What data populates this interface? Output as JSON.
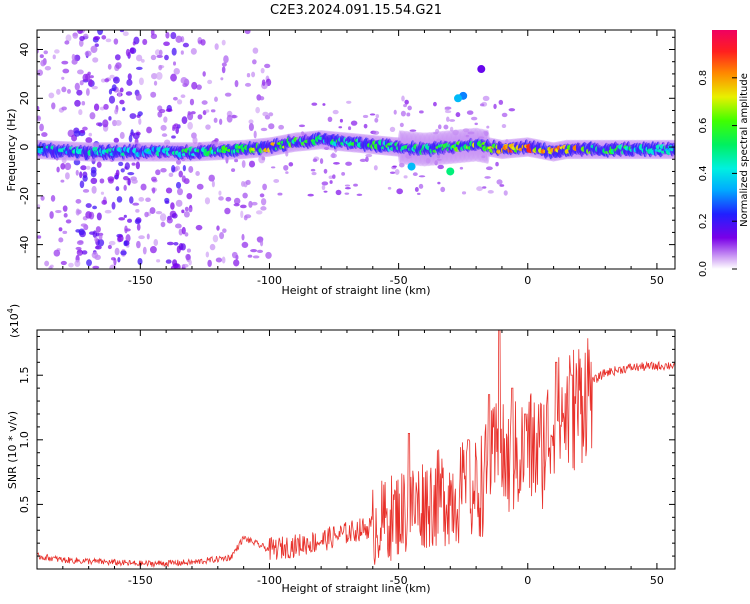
{
  "figure": {
    "title": "C2E3.2024.091.15.54.G21"
  },
  "chart_data": [
    {
      "type": "heatmap",
      "xlabel": "Height of straight line (km)",
      "ylabel": "Frequency (Hz)",
      "xlim": [
        -190,
        57
      ],
      "ylim": [
        -50,
        48
      ],
      "xticks": [
        -150,
        -100,
        -50,
        0,
        50
      ],
      "yticks": [
        -40,
        -20,
        0,
        20,
        40
      ],
      "grid": false,
      "colorbar": {
        "label": "Normalized spectral amplitude",
        "ticks": [
          "0.0",
          "0.2",
          "0.4",
          "0.6",
          "0.8"
        ],
        "range": [
          0,
          1
        ]
      },
      "ridge": [
        {
          "x": -190,
          "y": -1,
          "a": 0.45
        },
        {
          "x": -170,
          "y": -2,
          "a": 0.5
        },
        {
          "x": -150,
          "y": -2,
          "a": 0.45
        },
        {
          "x": -130,
          "y": -2,
          "a": 0.55
        },
        {
          "x": -110,
          "y": -1,
          "a": 0.62
        },
        {
          "x": -100,
          "y": 0,
          "a": 0.8
        },
        {
          "x": -90,
          "y": 2,
          "a": 0.6
        },
        {
          "x": -80,
          "y": 3,
          "a": 0.55
        },
        {
          "x": -70,
          "y": 2,
          "a": 0.55
        },
        {
          "x": -60,
          "y": 1,
          "a": 0.6
        },
        {
          "x": -50,
          "y": 0,
          "a": 0.55
        },
        {
          "x": -40,
          "y": -1,
          "a": 0.6
        },
        {
          "x": -30,
          "y": 0,
          "a": 0.65
        },
        {
          "x": -20,
          "y": 1,
          "a": 0.7
        },
        {
          "x": -10,
          "y": -1,
          "a": 0.85
        },
        {
          "x": 0,
          "y": 0,
          "a": 0.9
        },
        {
          "x": 5,
          "y": -1,
          "a": 0.88
        },
        {
          "x": 10,
          "y": -2,
          "a": 0.85
        },
        {
          "x": 15,
          "y": -1,
          "a": 0.9
        },
        {
          "x": 25,
          "y": -1,
          "a": 0.62
        },
        {
          "x": 40,
          "y": -1,
          "a": 0.55
        },
        {
          "x": 57,
          "y": -1,
          "a": 0.5
        }
      ],
      "features": [
        {
          "x": -25,
          "y": 21,
          "a": 0.3
        },
        {
          "x": -27,
          "y": 20,
          "a": 0.35
        },
        {
          "x": -18,
          "y": 32,
          "a": 0.15
        },
        {
          "x": -30,
          "y": -10,
          "a": 0.5
        },
        {
          "x": -45,
          "y": -8,
          "a": 0.35
        }
      ]
    },
    {
      "type": "line",
      "xlabel": "Height of straight line (km)",
      "ylabel": "SNR (10 * v/v)",
      "yscale_label": "(x10",
      "yscale_exponent": "4",
      "scale": 10000,
      "xlim": [
        -190,
        57
      ],
      "ylim": [
        0,
        18500
      ],
      "xticks": [
        -150,
        -100,
        -50,
        0,
        50
      ],
      "yticks": [
        "0.5",
        "1.0",
        "1.5"
      ],
      "ytick_values": [
        5000,
        10000,
        15000
      ],
      "grid": false,
      "series": [
        {
          "color": "#e8302a",
          "points": [
            {
              "x": -190,
              "y": 1000
            },
            {
              "x": -180,
              "y": 700
            },
            {
              "x": -170,
              "y": 600
            },
            {
              "x": -150,
              "y": 400
            },
            {
              "x": -130,
              "y": 500
            },
            {
              "x": -115,
              "y": 900
            },
            {
              "x": -110,
              "y": 2400
            },
            {
              "x": -100,
              "y": 1500
            },
            {
              "x": -90,
              "y": 1800
            },
            {
              "x": -80,
              "y": 2200
            },
            {
              "x": -70,
              "y": 2800
            },
            {
              "x": -60,
              "y": 3300
            },
            {
              "x": -50,
              "y": 4300
            },
            {
              "x": -40,
              "y": 5200
            },
            {
              "x": -30,
              "y": 5700
            },
            {
              "x": -20,
              "y": 6000
            },
            {
              "x": -15,
              "y": 7500
            },
            {
              "x": -12,
              "y": 9000
            },
            {
              "x": -8,
              "y": 8000
            },
            {
              "x": 0,
              "y": 9500
            },
            {
              "x": 5,
              "y": 9000
            },
            {
              "x": 10,
              "y": 11500
            },
            {
              "x": 15,
              "y": 12000
            },
            {
              "x": 20,
              "y": 13000
            },
            {
              "x": 25,
              "y": 14500
            },
            {
              "x": 30,
              "y": 15200
            },
            {
              "x": 40,
              "y": 15600
            },
            {
              "x": 50,
              "y": 15700
            },
            {
              "x": 57,
              "y": 15800
            }
          ],
          "spikes": [
            {
              "x": -11,
              "y": 18500
            },
            {
              "x": -15,
              "y": 13500
            },
            {
              "x": 11,
              "y": 16000
            },
            {
              "x": -6,
              "y": 14000
            },
            {
              "x": 17,
              "y": 15000
            },
            {
              "x": -46,
              "y": 10500
            },
            {
              "x": -23,
              "y": 10000
            },
            {
              "x": -1,
              "y": 12000
            }
          ]
        }
      ]
    }
  ]
}
